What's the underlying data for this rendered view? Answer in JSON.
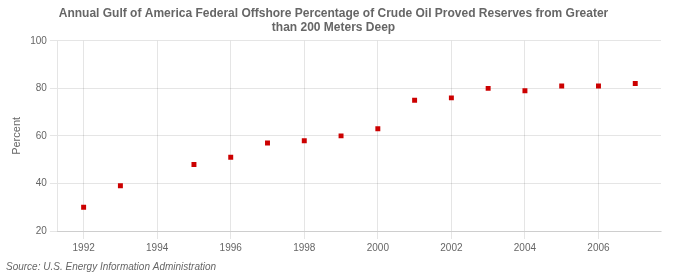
{
  "chart_data": {
    "type": "scatter",
    "title": "Annual Gulf of America Federal Offshore Percentage of Crude Oil Proved Reserves from Greater\nthan 200 Meters Deep",
    "ylabel": "Percent",
    "source": "Source: U.S. Energy Information Administration",
    "x": [
      1992,
      1993,
      1995,
      1996,
      1997,
      1998,
      1999,
      2000,
      2001,
      2002,
      2003,
      2004,
      2005,
      2006,
      2007
    ],
    "values": [
      30,
      39,
      48,
      51,
      57,
      58,
      60,
      63,
      75,
      76,
      80,
      79,
      81,
      81,
      82
    ],
    "color": "#cc0000",
    "marker": "square",
    "xlim": [
      1991.3,
      2007.7
    ],
    "xticks": [
      1992,
      1994,
      1996,
      1998,
      2000,
      2002,
      2004,
      2006
    ],
    "ylim": [
      20,
      100
    ],
    "yticks": [
      20,
      40,
      60,
      80,
      100
    ],
    "grid": true
  }
}
